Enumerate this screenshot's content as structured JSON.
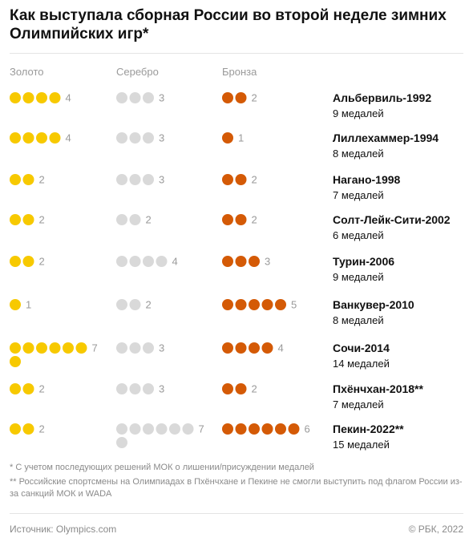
{
  "title": "Как выступала сборная России во второй неделе зимних Олимпийских игр*",
  "columns": {
    "gold": "Золото",
    "silver": "Серебро",
    "bronze": "Бронза"
  },
  "colors": {
    "gold": "#f7c900",
    "silver": "#d9d9d9",
    "bronze": "#d45a06",
    "count": "#9a9a9a"
  },
  "chart_data": {
    "type": "table",
    "categories": [
      "Альбервиль-1992",
      "Лиллехаммер-1994",
      "Нагано-1998",
      "Солт-Лейк-Сити-2002",
      "Турин-2006",
      "Ванкувер-2010",
      "Сочи-2014",
      "Пхёнчхан-2018**",
      "Пекин-2022**"
    ],
    "totals": [
      "9 медалей",
      "8 медалей",
      "7 медалей",
      "6 медалей",
      "9 медалей",
      "8 медалей",
      "14 медалей",
      "7 медалей",
      "15 медалей"
    ],
    "series": [
      {
        "name": "Золото",
        "values": [
          4,
          4,
          2,
          2,
          2,
          1,
          7,
          2,
          2
        ]
      },
      {
        "name": "Серебро",
        "values": [
          3,
          3,
          3,
          2,
          4,
          2,
          3,
          3,
          7
        ]
      },
      {
        "name": "Бронза",
        "values": [
          2,
          1,
          2,
          2,
          3,
          5,
          4,
          2,
          6
        ]
      }
    ]
  },
  "notes": [
    "* С учетом последующих решений МОК о лишении/присуждении медалей",
    "** Российские спортсмены на Олимпиадах в Пхёнчхане и Пекине не смогли выступить под флагом России из-за санкций МОК и WADA"
  ],
  "footer": {
    "source": "Источник: Olympics.com",
    "copyright": "© РБК, 2022"
  }
}
